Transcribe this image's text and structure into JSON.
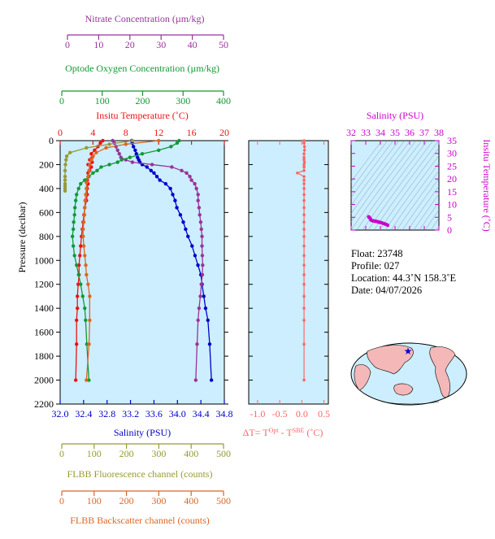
{
  "colors": {
    "nitrate": "#993399",
    "oxygen": "#119933",
    "temperature": "#ee1111",
    "salinity": "#0000cc",
    "fluorescence": "#999933",
    "backscatter": "#dd6622",
    "dt": "#ff6666",
    "ts": "#cc00cc",
    "panel_bg": "#cceeff",
    "land": "#f4b8b8"
  },
  "axes": {
    "nitrate": {
      "label": "Nitrate Concentration (µm/kg)",
      "ticks": [
        "0",
        "10",
        "20",
        "30",
        "40",
        "50"
      ]
    },
    "oxygen": {
      "label": "Optode Oxygen Concentration (µm/kg)",
      "ticks": [
        "0",
        "100",
        "200",
        "300",
        "400"
      ]
    },
    "temperature": {
      "label": "Insitu Temperature (˚C)",
      "ticks": [
        "0",
        "4",
        "8",
        "12",
        "16",
        "20"
      ]
    },
    "pressure": {
      "label": "Pressure (decibar)",
      "ticks": [
        "0",
        "200",
        "400",
        "600",
        "800",
        "1000",
        "1200",
        "1400",
        "1600",
        "1800",
        "2000",
        "2200"
      ]
    },
    "salinity": {
      "label": "Salinity (PSU)",
      "ticks": [
        "32.0",
        "32.4",
        "32.8",
        "33.2",
        "33.6",
        "34.0",
        "34.4",
        "34.8"
      ]
    },
    "fluorescence": {
      "label": "FLBB Fluorescence channel (counts)",
      "ticks": [
        "0",
        "100",
        "200",
        "300",
        "400",
        "500"
      ]
    },
    "backscatter": {
      "label": "FLBB Backscatter channel (counts)",
      "ticks": [
        "0",
        "100",
        "200",
        "300",
        "400",
        "500"
      ]
    },
    "dt": {
      "label_prefix": "ΔT= T",
      "sup1": "Opt",
      "label_mid": " - T",
      "sup2": "SBE",
      "label_suffix": " (˚C)",
      "ticks": [
        "-1.0",
        "-0.5",
        "0.0",
        "0.5"
      ]
    },
    "ts_salinity": {
      "label": "Salinity (PSU)",
      "ticks": [
        "32",
        "33",
        "34",
        "35",
        "36",
        "37",
        "38"
      ]
    },
    "ts_temperature": {
      "label": "Insitu Temperature (˚C)",
      "ticks": [
        "0",
        "5",
        "10",
        "15",
        "20",
        "25",
        "30",
        "35"
      ]
    }
  },
  "info": {
    "float": "Float:  23748",
    "profile": "Profile:  027",
    "location": "Location:  44.3˚N  158.3˚E",
    "date": "Date:  04/07/2026"
  },
  "chart_data": [
    {
      "type": "line",
      "ylabel": "Pressure (decibar)",
      "ylim": [
        2200,
        0
      ],
      "series": [
        {
          "name": "Insitu Temperature",
          "xlim": [
            0,
            20
          ],
          "x": [
            5.2,
            4.9,
            4.6,
            4.2,
            3.8,
            3.9,
            3.6,
            3.9,
            3.4,
            3.8,
            3.6,
            3.4,
            3.5,
            3.3,
            3.4,
            3.3,
            3.3,
            3.2,
            3.0,
            2.9,
            2.8,
            2.7,
            2.6,
            2.5,
            2.4,
            2.3,
            2.3,
            2.2,
            2.1,
            2.1,
            2.0,
            2.0,
            1.9
          ],
          "y": [
            0,
            20,
            50,
            80,
            110,
            140,
            160,
            180,
            200,
            220,
            250,
            270,
            300,
            330,
            360,
            400,
            450,
            500,
            560,
            620,
            680,
            740,
            800,
            880,
            960,
            1040,
            1120,
            1200,
            1300,
            1400,
            1500,
            1700,
            2000
          ]
        },
        {
          "name": "Salinity",
          "xlim": [
            32.0,
            34.8
          ],
          "x": [
            33.22,
            33.23,
            33.25,
            33.28,
            33.3,
            33.32,
            33.34,
            33.36,
            33.4,
            33.48,
            33.55,
            33.6,
            33.65,
            33.7,
            33.8,
            33.88,
            33.92,
            33.96,
            33.99,
            34.05,
            34.1,
            34.14,
            34.18,
            34.25,
            34.3,
            34.35,
            34.4,
            34.42,
            34.45,
            34.48,
            34.52,
            34.55,
            34.58
          ],
          "y": [
            0,
            20,
            50,
            80,
            110,
            140,
            160,
            180,
            200,
            220,
            250,
            270,
            300,
            330,
            360,
            400,
            450,
            500,
            560,
            620,
            680,
            740,
            800,
            880,
            960,
            1040,
            1120,
            1200,
            1300,
            1400,
            1500,
            1700,
            2000
          ]
        },
        {
          "name": "Nitrate Concentration",
          "xlim": [
            0,
            50
          ],
          "x": [
            16,
            16.5,
            17,
            17.5,
            18,
            18.5,
            20,
            22,
            28,
            34,
            37,
            38.5,
            39.5,
            40,
            41,
            41.5,
            42,
            42,
            42.3,
            42.5,
            42.8,
            43,
            43.2,
            43.2,
            43.3,
            43.4,
            43.3,
            43,
            42.7,
            42.3,
            42,
            41.7,
            41.3
          ],
          "y": [
            0,
            20,
            50,
            80,
            110,
            140,
            160,
            180,
            200,
            220,
            250,
            270,
            300,
            330,
            360,
            400,
            450,
            500,
            560,
            620,
            680,
            740,
            800,
            880,
            960,
            1040,
            1120,
            1200,
            1300,
            1400,
            1500,
            1700,
            2000
          ]
        },
        {
          "name": "Optode Oxygen Concentration",
          "xlim": [
            0,
            400
          ],
          "x": [
            290,
            285,
            270,
            240,
            200,
            170,
            150,
            140,
            120,
            100,
            90,
            80,
            70,
            60,
            50,
            45,
            40,
            38,
            36,
            35,
            33,
            32,
            30,
            32,
            35,
            40,
            45,
            50,
            55,
            60,
            62,
            65,
            70
          ],
          "y": [
            0,
            20,
            50,
            80,
            110,
            140,
            160,
            180,
            200,
            220,
            250,
            270,
            300,
            330,
            360,
            400,
            450,
            500,
            560,
            620,
            680,
            740,
            800,
            880,
            960,
            1040,
            1120,
            1200,
            1300,
            1400,
            1500,
            1700,
            2000
          ]
        },
        {
          "name": "FLBB Fluorescence channel",
          "xlim": [
            0,
            500
          ],
          "x": [
            220,
            150,
            80,
            30,
            20,
            18,
            16,
            15,
            15,
            15,
            15,
            15,
            15,
            15
          ],
          "y": [
            0,
            30,
            60,
            100,
            130,
            160,
            200,
            250,
            300,
            330,
            360,
            380,
            400,
            420
          ]
        },
        {
          "name": "FLBB Backscatter channel",
          "xlim": [
            0,
            500
          ],
          "x": [
            300,
            200,
            140,
            110,
            100,
            95,
            90,
            88,
            85,
            80,
            80,
            78,
            76,
            75,
            74,
            72,
            70,
            70,
            72,
            75,
            78,
            80,
            85,
            90,
            90,
            88,
            80
          ],
          "y": [
            0,
            30,
            60,
            100,
            130,
            160,
            200,
            250,
            300,
            350,
            400,
            450,
            500,
            560,
            620,
            680,
            740,
            800,
            880,
            960,
            1040,
            1120,
            1200,
            1300,
            1500,
            1700,
            2000
          ]
        }
      ]
    },
    {
      "type": "line",
      "series": [
        {
          "name": "ΔT",
          "xlim": [
            -1.2,
            0.6
          ],
          "x": [
            0.05,
            0.05,
            0.06,
            0.06,
            0.05,
            0.05,
            0.05,
            0.06,
            0.05,
            0.05,
            0.05,
            -0.1,
            0.05,
            0.05,
            0.05,
            0.05,
            0.05,
            0.05,
            0.05,
            0.05,
            0.05,
            0.05,
            0.05,
            0.05,
            0.05,
            0.05,
            0.05,
            0.05,
            0.05,
            0.05,
            0.05,
            0.05,
            0.05
          ],
          "y": [
            0,
            20,
            50,
            80,
            110,
            140,
            160,
            180,
            200,
            220,
            250,
            270,
            300,
            330,
            360,
            400,
            450,
            500,
            560,
            620,
            680,
            740,
            800,
            880,
            960,
            1040,
            1120,
            1200,
            1300,
            1400,
            1500,
            1700,
            2000
          ]
        }
      ]
    },
    {
      "type": "scatter",
      "series": [
        {
          "name": "T-S",
          "xlim": [
            32,
            38
          ],
          "ylim": [
            0,
            35
          ],
          "x": [
            33.2,
            33.25,
            33.3,
            33.35,
            33.4,
            33.5,
            33.6,
            33.7,
            33.8,
            33.9,
            34.0,
            34.1,
            34.2,
            34.3,
            34.4,
            34.5
          ],
          "y": [
            5.2,
            4.9,
            4.6,
            4.0,
            3.8,
            3.6,
            3.5,
            3.4,
            3.3,
            3.1,
            3.0,
            2.8,
            2.6,
            2.4,
            2.2,
            1.9
          ]
        }
      ]
    }
  ]
}
